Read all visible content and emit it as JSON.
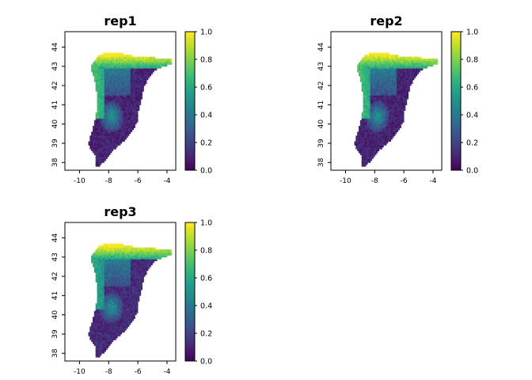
{
  "palette": [
    "#440154",
    "#482878",
    "#3e4a89",
    "#31688e",
    "#26828e",
    "#1f9e89",
    "#35b779",
    "#6ece58",
    "#b5de2b",
    "#fde725"
  ],
  "chart_data": [
    {
      "type": "heatmap",
      "title": "rep1",
      "xlabel": "",
      "ylabel": "",
      "xlim": [
        -11,
        -3.4
      ],
      "ylim": [
        37.6,
        44.8
      ],
      "xticks": [
        "-10",
        "-8",
        "-6",
        "-4"
      ],
      "yticks": [
        "38",
        "39",
        "40",
        "41",
        "42",
        "43",
        "44"
      ],
      "colorbar": {
        "range": [
          0,
          1
        ],
        "ticks": [
          "0.0",
          "0.2",
          "0.4",
          "0.6",
          "0.8",
          "1.0"
        ]
      },
      "grid": false,
      "values_summary": {
        "north_coast_band": 0.95,
        "northwest_interior": 0.6,
        "central_west": 0.55,
        "south_and_east": 0.1
      }
    },
    {
      "type": "heatmap",
      "title": "rep2",
      "xlabel": "",
      "ylabel": "",
      "xlim": [
        -11,
        -3.4
      ],
      "ylim": [
        37.6,
        44.8
      ],
      "xticks": [
        "-10",
        "-8",
        "-6",
        "-4"
      ],
      "yticks": [
        "38",
        "39",
        "40",
        "41",
        "42",
        "43",
        "44"
      ],
      "colorbar": {
        "range": [
          0,
          1
        ],
        "ticks": [
          "0.0",
          "0.2",
          "0.4",
          "0.6",
          "0.8",
          "1.0"
        ]
      },
      "grid": false,
      "values_summary": {
        "north_coast_band": 0.95,
        "northwest_interior": 0.6,
        "central_west": 0.55,
        "south_and_east": 0.1
      }
    },
    {
      "type": "heatmap",
      "title": "rep3",
      "xlabel": "",
      "ylabel": "",
      "xlim": [
        -11,
        -3.4
      ],
      "ylim": [
        37.6,
        44.8
      ],
      "xticks": [
        "-10",
        "-8",
        "-6",
        "-4"
      ],
      "yticks": [
        "38",
        "39",
        "40",
        "41",
        "42",
        "43",
        "44"
      ],
      "colorbar": {
        "range": [
          0,
          1
        ],
        "ticks": [
          "0.0",
          "0.2",
          "0.4",
          "0.6",
          "0.8",
          "1.0"
        ]
      },
      "grid": false,
      "values_summary": {
        "north_coast_band": 0.95,
        "northwest_interior": 0.5,
        "central_west": 0.55,
        "south_and_east": 0.12
      }
    }
  ]
}
